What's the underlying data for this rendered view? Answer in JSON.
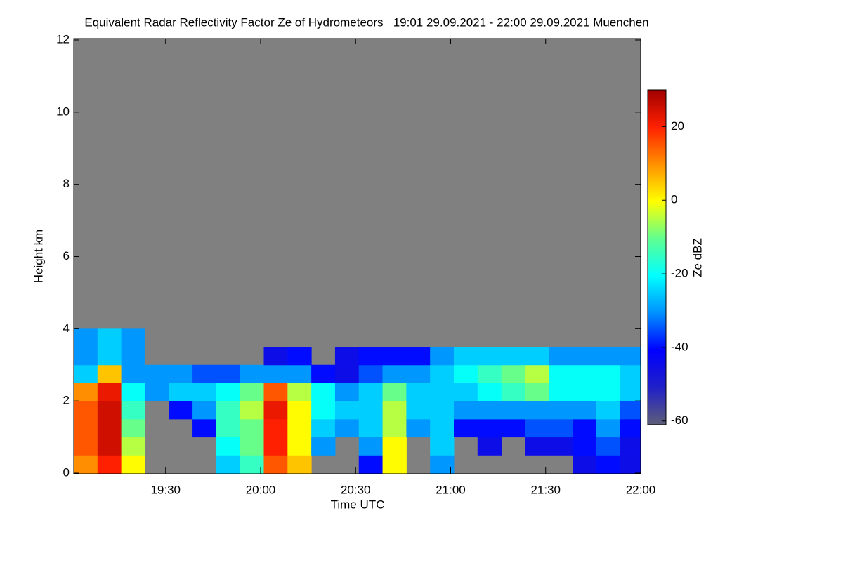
{
  "chart_data": {
    "type": "heatmap",
    "title": "Equivalent Radar Reflectivity Factor Ze of Hydrometeors   19:01 29.09.2021 - 22:00 29.09.2021 Muenchen",
    "x_label": "Time UTC",
    "y_label": "Height km",
    "colorbar_label": "Ze dBZ",
    "xlim": [
      1,
      180
    ],
    "xticks": [
      {
        "value": 30,
        "label": "19:30"
      },
      {
        "value": 60,
        "label": "20:00"
      },
      {
        "value": 90,
        "label": "20:30"
      },
      {
        "value": 120,
        "label": "21:00"
      },
      {
        "value": 150,
        "label": "21:30"
      },
      {
        "value": 180,
        "label": "22:00"
      }
    ],
    "ylim": [
      0,
      12
    ],
    "yticks": [
      0,
      2,
      4,
      6,
      8,
      10,
      12
    ],
    "clim": [
      -61,
      30
    ],
    "cticks": [
      -60,
      -40,
      -20,
      0,
      20
    ],
    "colormap": [
      "#5e5e78",
      "#2020c8",
      "#0000ff",
      "#0090ff",
      "#00ffff",
      "#60ff90",
      "#ffff00",
      "#ff9000",
      "#ff2000",
      "#a00000"
    ],
    "nodata_color": "#808080",
    "x_bins": [
      1,
      8.5,
      16,
      23.5,
      31,
      38.5,
      46,
      53.5,
      61,
      68.5,
      76,
      83.5,
      91,
      98.5,
      106,
      113.5,
      121,
      128.5,
      136,
      143.5,
      151,
      158.5,
      166,
      173.5,
      180
    ],
    "y_bins": [
      0,
      0.5,
      1,
      1.5,
      2,
      2.5,
      3,
      3.5,
      4
    ],
    "z": [
      [
        10,
        20,
        0,
        null,
        null,
        null,
        -25,
        -15,
        15,
        5,
        null,
        null,
        -40,
        0,
        null,
        -30,
        null,
        null,
        null,
        null,
        null,
        -45,
        -40,
        -45
      ],
      [
        15,
        25,
        -5,
        null,
        null,
        null,
        -20,
        -10,
        20,
        0,
        -30,
        null,
        -30,
        0,
        null,
        -25,
        null,
        -45,
        null,
        -45,
        -45,
        -40,
        -35,
        -45
      ],
      [
        15,
        25,
        -10,
        null,
        null,
        -40,
        -15,
        -10,
        20,
        0,
        -25,
        -30,
        -25,
        -5,
        -30,
        -25,
        -40,
        -40,
        -40,
        -35,
        -35,
        -40,
        -30,
        -40
      ],
      [
        15,
        25,
        -15,
        null,
        -40,
        -30,
        -15,
        -5,
        22,
        0,
        -20,
        -25,
        -25,
        -5,
        -25,
        -25,
        -30,
        -30,
        -30,
        -30,
        -30,
        -30,
        -25,
        -35
      ],
      [
        10,
        22,
        -20,
        -30,
        -25,
        -25,
        -20,
        -10,
        15,
        -5,
        -20,
        -30,
        -25,
        -10,
        -25,
        -25,
        -25,
        -20,
        -15,
        -10,
        -20,
        -20,
        -20,
        -25
      ],
      [
        -25,
        5,
        -30,
        -30,
        -30,
        -35,
        -35,
        -30,
        -30,
        -30,
        -40,
        -45,
        -35,
        -30,
        -30,
        -25,
        -20,
        -15,
        -10,
        -5,
        -20,
        -20,
        -20,
        -25
      ],
      [
        -30,
        -25,
        -30,
        null,
        null,
        null,
        null,
        null,
        -45,
        -40,
        null,
        -45,
        -40,
        -40,
        -40,
        -30,
        -25,
        -25,
        -25,
        -25,
        -30,
        -30,
        -30,
        -30
      ],
      [
        -30,
        -25,
        -30,
        null,
        null,
        null,
        null,
        null,
        null,
        null,
        null,
        null,
        null,
        null,
        null,
        null,
        null,
        null,
        null,
        null,
        null,
        null,
        null,
        null
      ]
    ]
  }
}
